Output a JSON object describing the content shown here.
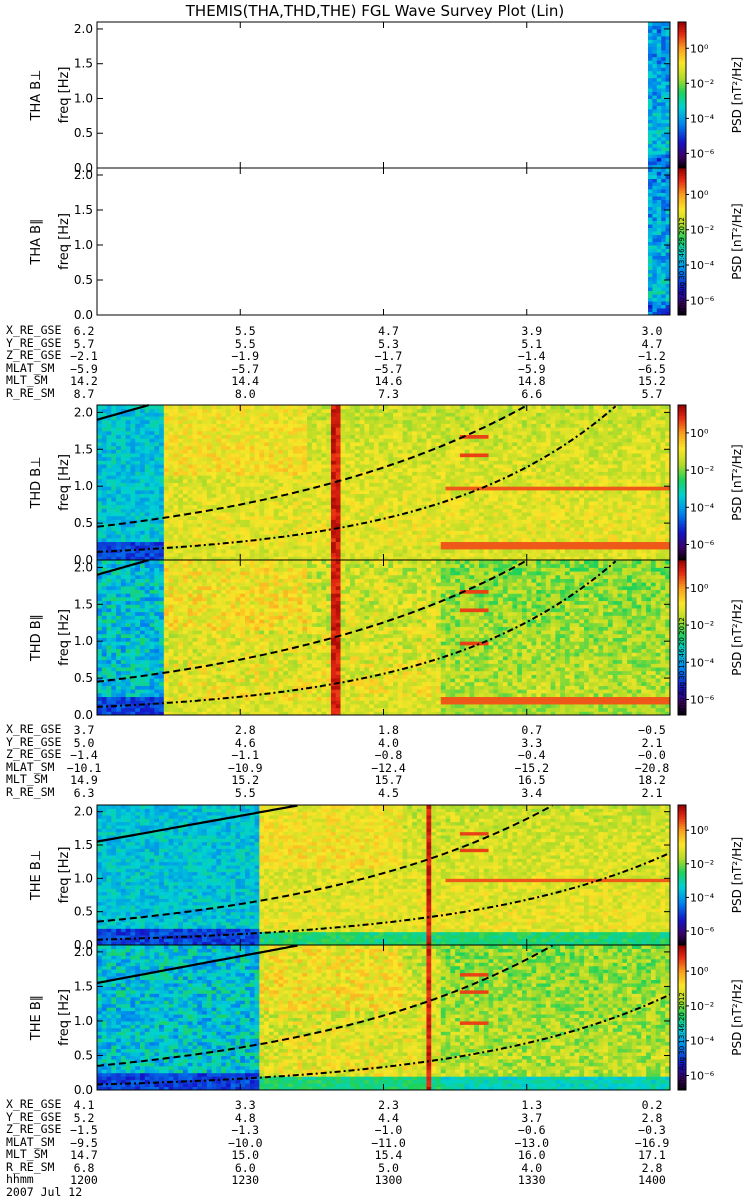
{
  "title": "THEMIS(THA,THD,THE) FGL Wave Survey Plot (Lin)",
  "colorbar": {
    "label": "PSD [nT²/Hz]",
    "ticks": [
      "10⁰",
      "10⁻²",
      "10⁻⁴",
      "10⁻⁶"
    ],
    "stamp": "Thu Aug 30 13:46:29 2012",
    "stamp_thd": "Thu Aug 30 13:46:20 2012",
    "stamp_the": "Thu Aug 30 13:46:20 2012"
  },
  "freq_axis": {
    "label": "freq [Hz]",
    "ticks": [
      "0.0",
      "0.5",
      "1.0",
      "1.5",
      "2.0"
    ],
    "range": [
      0,
      2.1
    ]
  },
  "chart_data": [
    {
      "type": "heatmap",
      "probe": "THA",
      "panel": "THA B⊥",
      "data_coverage": "only final few minutes near 14:00",
      "ylabel": "freq [Hz]",
      "ylim": [
        0,
        2.1
      ]
    },
    {
      "type": "heatmap",
      "probe": "THA",
      "panel": "THA B∥",
      "data_coverage": "only final few minutes near 14:00",
      "ylabel": "freq [Hz]",
      "ylim": [
        0,
        2.1
      ]
    },
    {
      "type": "heatmap",
      "probe": "THD",
      "panel": "THD B⊥",
      "data_coverage": "full interval, enhancement begins ~12:10, spike ~12:40",
      "ylabel": "freq [Hz]",
      "ylim": [
        0,
        2.1
      ]
    },
    {
      "type": "heatmap",
      "probe": "THD",
      "panel": "THD B∥",
      "data_coverage": "full interval",
      "ylabel": "freq [Hz]",
      "ylim": [
        0,
        2.1
      ]
    },
    {
      "type": "heatmap",
      "probe": "THE",
      "panel": "THE B⊥",
      "data_coverage": "full interval, enhancement begins ~12:40, spike ~13:15",
      "ylabel": "freq [Hz]",
      "ylim": [
        0,
        2.1
      ]
    },
    {
      "type": "heatmap",
      "probe": "THE",
      "panel": "THE B∥",
      "data_coverage": "full interval",
      "ylabel": "freq [Hz]",
      "ylim": [
        0,
        2.1
      ]
    }
  ],
  "ephemeris": {
    "tha": {
      "labels": [
        "X_RE_GSE",
        "Y_RE_GSE",
        "Z_RE_GSE",
        "MLAT_SM",
        "MLT_SM",
        "R_RE_SM"
      ],
      "columns": [
        [
          "6.2",
          "5.7",
          "−2.1",
          "−5.9",
          "14.2",
          "8.7"
        ],
        [
          "5.5",
          "5.5",
          "−1.9",
          "−5.7",
          "14.4",
          "8.0"
        ],
        [
          "4.7",
          "5.3",
          "−1.7",
          "−5.7",
          "14.6",
          "7.3"
        ],
        [
          "3.9",
          "5.1",
          "−1.4",
          "−5.9",
          "14.8",
          "6.6"
        ],
        [
          "3.0",
          "4.7",
          "−1.2",
          "−6.5",
          "15.2",
          "5.7"
        ]
      ]
    },
    "thd": {
      "labels": [
        "X_RE_GSE",
        "Y_RE_GSE",
        "Z_RE_GSE",
        "MLAT_SM",
        "MLT_SM",
        "R_RE_SM"
      ],
      "columns": [
        [
          "3.7",
          "5.0",
          "−1.4",
          "−10.1",
          "14.9",
          "6.3"
        ],
        [
          "2.8",
          "4.6",
          "−1.1",
          "−10.9",
          "15.2",
          "5.5"
        ],
        [
          "1.8",
          "4.0",
          "−0.8",
          "−12.4",
          "15.7",
          "4.5"
        ],
        [
          "0.7",
          "3.3",
          "−0.4",
          "−15.2",
          "16.5",
          "3.4"
        ],
        [
          "−0.5",
          "2.1",
          "−0.0",
          "−20.8",
          "18.2",
          "2.1"
        ]
      ]
    },
    "the": {
      "labels": [
        "X_RE_GSE",
        "Y_RE_GSE",
        "Z_RE_GSE",
        "MLAT_SM",
        "MLT_SM",
        "R_RE_SM",
        "hhmm"
      ],
      "columns": [
        [
          "4.1",
          "5.2",
          "−1.5",
          "−9.5",
          "14.7",
          "6.8",
          "1200"
        ],
        [
          "3.3",
          "4.8",
          "−1.3",
          "−10.0",
          "15.0",
          "6.0",
          "1230"
        ],
        [
          "2.3",
          "4.4",
          "−1.0",
          "−11.0",
          "15.4",
          "5.0",
          "1300"
        ],
        [
          "1.3",
          "3.7",
          "−0.6",
          "−13.0",
          "16.0",
          "4.0",
          "1330"
        ],
        [
          "0.2",
          "2.8",
          "−0.3",
          "−16.9",
          "17.1",
          "2.8",
          "1400"
        ]
      ]
    }
  },
  "date": "2007 Jul 12"
}
